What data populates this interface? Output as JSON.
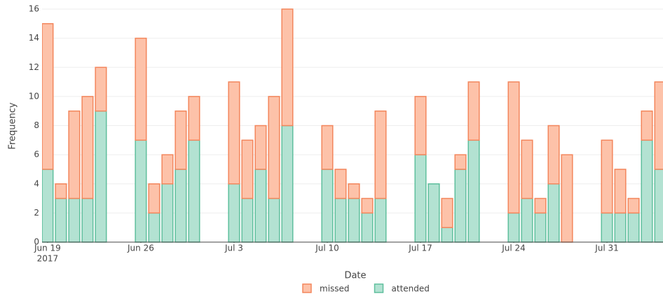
{
  "chart_data": {
    "type": "bar",
    "barmode": "stack",
    "x_label": "Date",
    "y_label": "Frequency",
    "x": [
      "2017-06-19",
      "2017-06-20",
      "2017-06-21",
      "2017-06-22",
      "2017-06-23",
      "2017-06-26",
      "2017-06-27",
      "2017-06-28",
      "2017-06-29",
      "2017-06-30",
      "2017-07-03",
      "2017-07-04",
      "2017-07-05",
      "2017-07-06",
      "2017-07-07",
      "2017-07-10",
      "2017-07-11",
      "2017-07-12",
      "2017-07-13",
      "2017-07-14",
      "2017-07-17",
      "2017-07-18",
      "2017-07-19",
      "2017-07-20",
      "2017-07-21",
      "2017-07-24",
      "2017-07-25",
      "2017-07-26",
      "2017-07-27",
      "2017-07-28",
      "2017-07-31",
      "2017-08-01",
      "2017-08-02",
      "2017-08-03",
      "2017-08-04"
    ],
    "series": [
      {
        "name": "attended",
        "color": "#b3e2d2",
        "line_color": "#5fbf9d",
        "values": [
          5,
          3,
          3,
          3,
          9,
          7,
          2,
          4,
          5,
          7,
          4,
          3,
          5,
          3,
          8,
          5,
          3,
          3,
          2,
          3,
          6,
          4,
          1,
          5,
          7,
          2,
          3,
          2,
          4,
          0,
          2,
          2,
          2,
          7,
          5
        ]
      },
      {
        "name": "missed",
        "color": "#fdc2a9",
        "line_color": "#f3865c",
        "values": [
          10,
          1,
          6,
          7,
          3,
          7,
          2,
          2,
          4,
          3,
          7,
          4,
          3,
          7,
          8,
          3,
          2,
          1,
          1,
          6,
          4,
          0,
          2,
          1,
          4,
          9,
          4,
          1,
          4,
          6,
          5,
          3,
          1,
          2,
          6
        ]
      }
    ],
    "legend_order": [
      1,
      0
    ],
    "xlim": [
      "2017-06-18 14:00",
      "2017-08-04 05:00"
    ],
    "xticks": [
      {
        "value": "2017-06-19",
        "label": "Jun 19"
      },
      {
        "value": "2017-06-26",
        "label": "Jun 26"
      },
      {
        "value": "2017-07-03",
        "label": "Jul 3"
      },
      {
        "value": "2017-07-10",
        "label": "Jul 10"
      },
      {
        "value": "2017-07-17",
        "label": "Jul 17"
      },
      {
        "value": "2017-07-24",
        "label": "Jul 24"
      },
      {
        "value": "2017-07-31",
        "label": "Jul 31"
      }
    ],
    "xtick_year": "2017",
    "ylim": [
      0,
      16
    ],
    "yticks": [
      0,
      2,
      4,
      6,
      8,
      10,
      12,
      14,
      16
    ],
    "grid": true
  }
}
